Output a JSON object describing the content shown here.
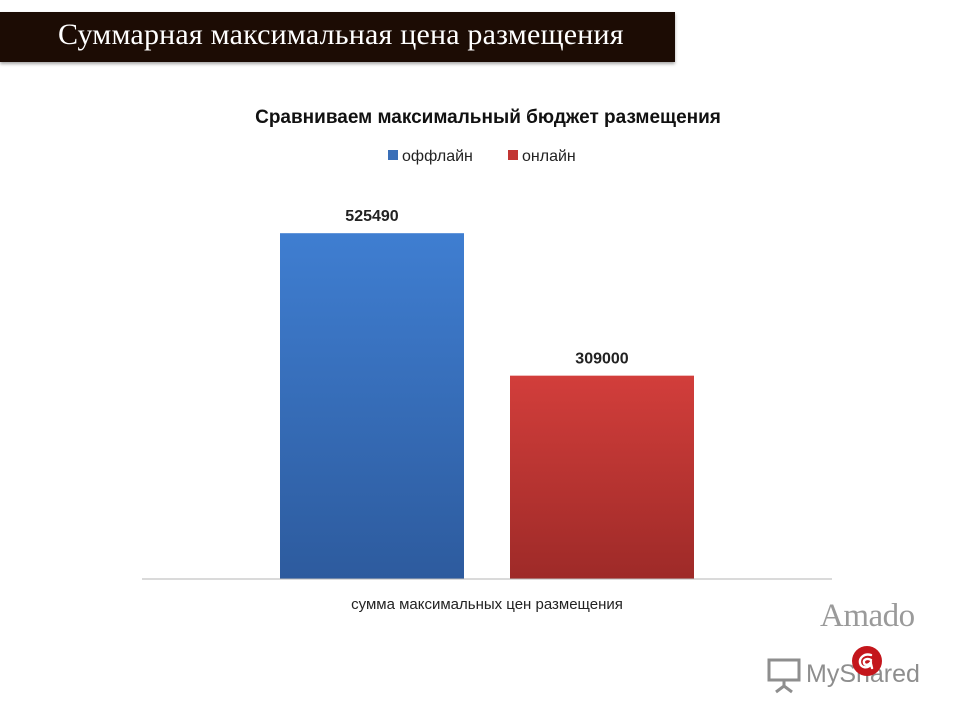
{
  "slide": {
    "title": "Суммарная максимальная цена размещения"
  },
  "chart_data": {
    "type": "bar",
    "title": "Сравниваем максимальный бюджет размещения",
    "categories": [
      "сумма максимальных цен размещения"
    ],
    "series": [
      {
        "name": "оффлайн",
        "values": [
          525490
        ],
        "color": "#3a6fb8"
      },
      {
        "name": "онлайн",
        "values": [
          309000
        ],
        "color": "#c23533"
      }
    ],
    "xlabel": "",
    "ylabel": "",
    "ylim": [
      0,
      600000
    ],
    "grid": false,
    "legend": "top-center",
    "data_labels": true
  },
  "watermarks": {
    "amado": "Amado",
    "myshared": "MyShared",
    "myshared_icon": "presentation-board-icon",
    "logo_icon": "red-a-logo-icon"
  }
}
